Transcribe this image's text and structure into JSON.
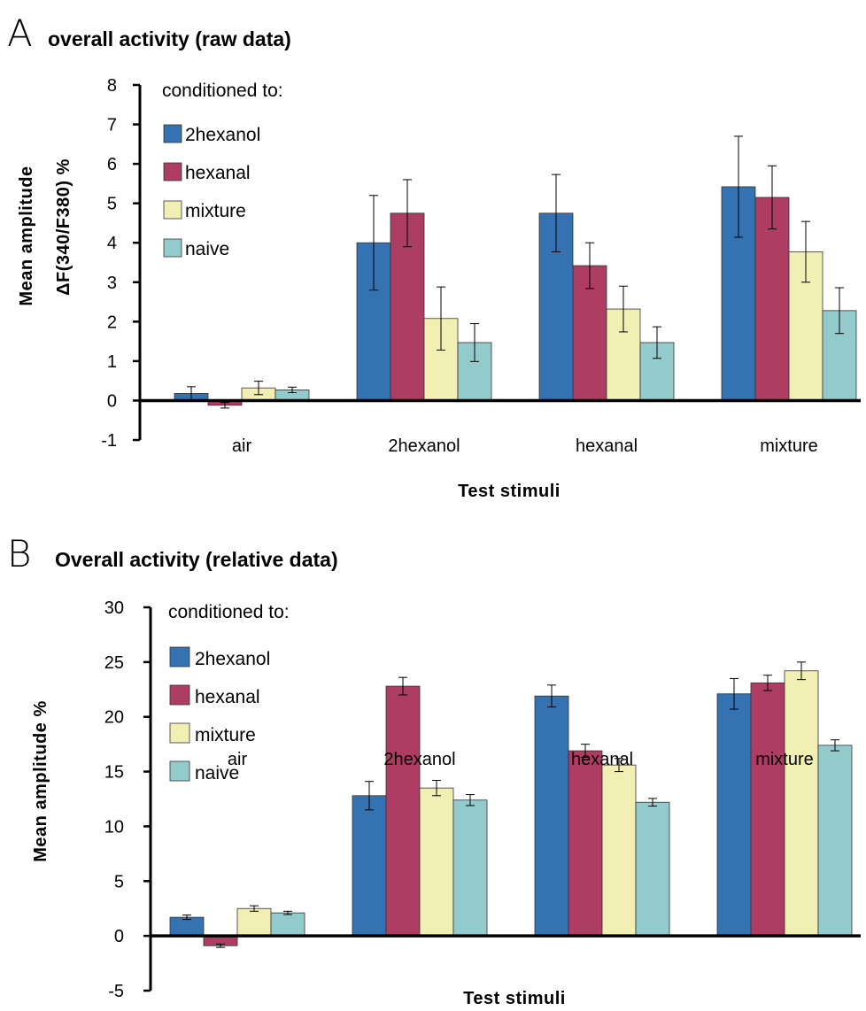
{
  "chart_data": [
    {
      "type": "bar",
      "panel_label": "A",
      "title": "overall activity (raw data)",
      "ylabel": "Mean amplitude",
      "ylabel2": "ΔF(340/F380) %",
      "xlabel": "Test stimuli",
      "ylim": [
        -1,
        8
      ],
      "yticks": [
        -1,
        0,
        1,
        2,
        3,
        4,
        5,
        6,
        7,
        8
      ],
      "grid": false,
      "legend_title": "conditioned to:",
      "legend_position": "top-left",
      "categories": [
        "air",
        "2hexanol",
        "hexanal",
        "mixture"
      ],
      "series": [
        {
          "name": "2hexanol",
          "color": "#3472b2",
          "values": [
            0.18,
            4.0,
            4.75,
            5.42
          ],
          "errors": [
            0.17,
            1.2,
            0.98,
            1.28
          ]
        },
        {
          "name": "hexanal",
          "color": "#ad3d62",
          "values": [
            -0.12,
            4.75,
            3.42,
            5.15
          ],
          "errors": [
            0.07,
            0.85,
            0.58,
            0.8
          ]
        },
        {
          "name": "mixture",
          "color": "#f2efb4",
          "values": [
            0.32,
            2.08,
            2.32,
            3.77
          ],
          "errors": [
            0.17,
            0.8,
            0.58,
            0.77
          ]
        },
        {
          "name": "naive",
          "color": "#93cbcc",
          "values": [
            0.27,
            1.47,
            1.47,
            2.28
          ],
          "errors": [
            0.07,
            0.48,
            0.4,
            0.58
          ]
        }
      ]
    },
    {
      "type": "bar",
      "panel_label": "B",
      "title": "Overall activity (relative data)",
      "ylabel": "Mean amplitude %",
      "xlabel": "Test stimuli",
      "ylim": [
        -5,
        30
      ],
      "yticks": [
        -5,
        0,
        5,
        10,
        15,
        20,
        25,
        30
      ],
      "grid": false,
      "legend_title": "conditioned to:",
      "legend_position": "top-left",
      "categories": [
        "air",
        "2hexanol",
        "hexanal",
        "mixture"
      ],
      "series": [
        {
          "name": "2hexanol",
          "color": "#3472b2",
          "values": [
            1.7,
            12.8,
            21.9,
            22.1
          ],
          "errors": [
            0.2,
            1.3,
            1.0,
            1.4
          ]
        },
        {
          "name": "hexanal",
          "color": "#ad3d62",
          "values": [
            -0.9,
            22.8,
            16.9,
            23.1
          ],
          "errors": [
            0.15,
            0.8,
            0.6,
            0.7
          ]
        },
        {
          "name": "mixture",
          "color": "#f2efb4",
          "values": [
            2.5,
            13.5,
            15.6,
            24.2
          ],
          "errors": [
            0.25,
            0.7,
            0.6,
            0.8
          ]
        },
        {
          "name": "naive",
          "color": "#93cbcc",
          "values": [
            2.1,
            12.4,
            12.2,
            17.4
          ],
          "errors": [
            0.15,
            0.5,
            0.35,
            0.5
          ]
        }
      ]
    }
  ]
}
